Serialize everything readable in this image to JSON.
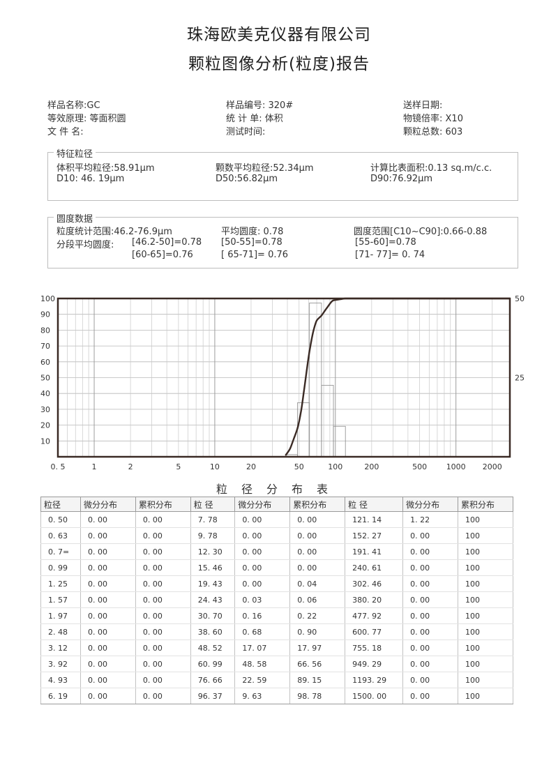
{
  "header": {
    "company": "珠海欧美克仪器有限公司",
    "report": "颗粒图像分析(粒度)报告"
  },
  "info": {
    "sample_name": "样品名称:GC",
    "sample_no": "样品编号: 320#",
    "send_date": "送样日期:",
    "principle": "等效原理: 等面积圆",
    "stat_unit": "统 计 单: 体积",
    "magnification": "物镜倍率: X10",
    "file_name": "文 件 名:",
    "test_time": "测试时间:",
    "total_particles": "颗粒总数: 603"
  },
  "feature": {
    "title": "特征粒径",
    "vol_mean": "体积平均粒径:58.91μm",
    "num_mean": "颗数平均粒径:52.34μm",
    "ssa": "计算比表面积:0.13 sq.m/c.c.",
    "d10": "D10: 46. 19μm",
    "d50": "D50:56.82μm",
    "d90": "D90:76.92μm"
  },
  "roundness": {
    "title": "圆度数据",
    "range": "粒度统计范围:46.2-76.9μm",
    "avg": "平均圆度: 0.78",
    "round_range": "圆度范围[C10~C90]:0.66-0.88",
    "seg_label": "分段平均圆度:",
    "seg1": "[46.2-50]=0.78",
    "seg2": "[50-55]=0.78",
    "seg3": "[55-60]=0.78",
    "seg4": "[60-65]=0.76",
    "seg5": "[ 65-71]= 0.76",
    "seg6": "[71- 77]= 0. 74"
  },
  "chart_data": {
    "type": "line",
    "title": "",
    "xlabel": "",
    "ylabel": "",
    "x_scale": "log",
    "x_ticks": [
      "0. 5",
      "1",
      "2",
      "5",
      "10",
      "20",
      "50",
      "100",
      "200",
      "500",
      "1000",
      "2000"
    ],
    "x_tick_values": [
      0.5,
      1,
      2,
      5,
      10,
      20,
      50,
      100,
      200,
      500,
      1000,
      2000
    ],
    "xlim": [
      0.5,
      2800
    ],
    "y_left_ticks": [
      "100",
      "90",
      "80",
      "70",
      "60",
      "50",
      "40",
      "30",
      "20",
      "10"
    ],
    "ylim_left": [
      0,
      100
    ],
    "y_right_ticks": [
      "50",
      "25"
    ],
    "ylim_right": [
      0,
      50
    ],
    "grid": true,
    "series": [
      {
        "kind": "cumulative_line",
        "axis": "left",
        "x": [
          38.6,
          42,
          45,
          48.52,
          52,
          55,
          60.99,
          66,
          70,
          76.66,
          85,
          96.37,
          110,
          121.14,
          152.27,
          2800
        ],
        "values": [
          0.9,
          5,
          11,
          18,
          29,
          42,
          66.6,
          80,
          86,
          89.2,
          94,
          98.8,
          99.5,
          100,
          100,
          100
        ]
      },
      {
        "kind": "differential_bars",
        "axis": "right",
        "edges": [
          38.6,
          48.52,
          60.99,
          76.66,
          96.37,
          121.14
        ],
        "values": [
          0.68,
          17.07,
          48.58,
          22.59,
          9.63,
          1.22
        ]
      }
    ]
  },
  "table": {
    "title": "粒径分布表",
    "headers": [
      "粒径",
      "微分分布",
      "累积分布",
      "粒 径",
      "微分分布",
      "累积分布",
      "粒 径",
      "微分分布",
      "累积分布"
    ],
    "rows": [
      [
        "0. 50",
        "0. 00",
        "0. 00",
        "7. 78",
        "0. 00",
        "0. 00",
        "121. 14",
        "1. 22",
        "100"
      ],
      [
        "0. 63",
        "0. 00",
        "0. 00",
        "9. 78",
        "0. 00",
        "0. 00",
        "152. 27",
        "0. 00",
        "100"
      ],
      [
        "0. 7=",
        "0. 00",
        "0. 00",
        "12. 30",
        "0. 00",
        "0. 00",
        "191. 41",
        "0. 00",
        "100"
      ],
      [
        "0. 99",
        "0. 00",
        "0. 00",
        "15. 46",
        "0. 00",
        "0. 00",
        "240. 61",
        "0. 00",
        "100"
      ],
      [
        "1. 25",
        "0. 00",
        "0. 00",
        "19. 43",
        "0. 00",
        "0. 04",
        "302. 46",
        "0. 00",
        "100"
      ],
      [
        "1. 57",
        "0. 00",
        "0. 00",
        "24. 43",
        "0. 03",
        "0. 06",
        "380. 20",
        "0. 00",
        "100"
      ],
      [
        "1. 97",
        "0. 00",
        "0. 00",
        "30. 70",
        "0. 16",
        "0. 22",
        "477. 92",
        "0. 00",
        "100"
      ],
      [
        "2. 48",
        "0. 00",
        "0. 00",
        "38. 60",
        "0. 68",
        "0. 90",
        "600. 77",
        "0. 00",
        "100"
      ],
      [
        "3. 12",
        "0. 00",
        "0. 00",
        "48. 52",
        "17. 07",
        "17. 97",
        "755. 18",
        "0. 00",
        "100"
      ],
      [
        "3. 92",
        "0. 00",
        "0. 00",
        "60. 99",
        "48. 58",
        "66. 56",
        "949. 29",
        "0. 00",
        "100"
      ],
      [
        "4. 93",
        "0. 00",
        "0. 00",
        "76. 66",
        "22. 59",
        "89. 15",
        "1193. 29",
        "0. 00",
        "100"
      ],
      [
        "6. 19",
        "0. 00",
        "0. 00",
        "96. 37",
        "9. 63",
        "98. 78",
        "1500. 00",
        "0. 00",
        "100"
      ]
    ]
  }
}
